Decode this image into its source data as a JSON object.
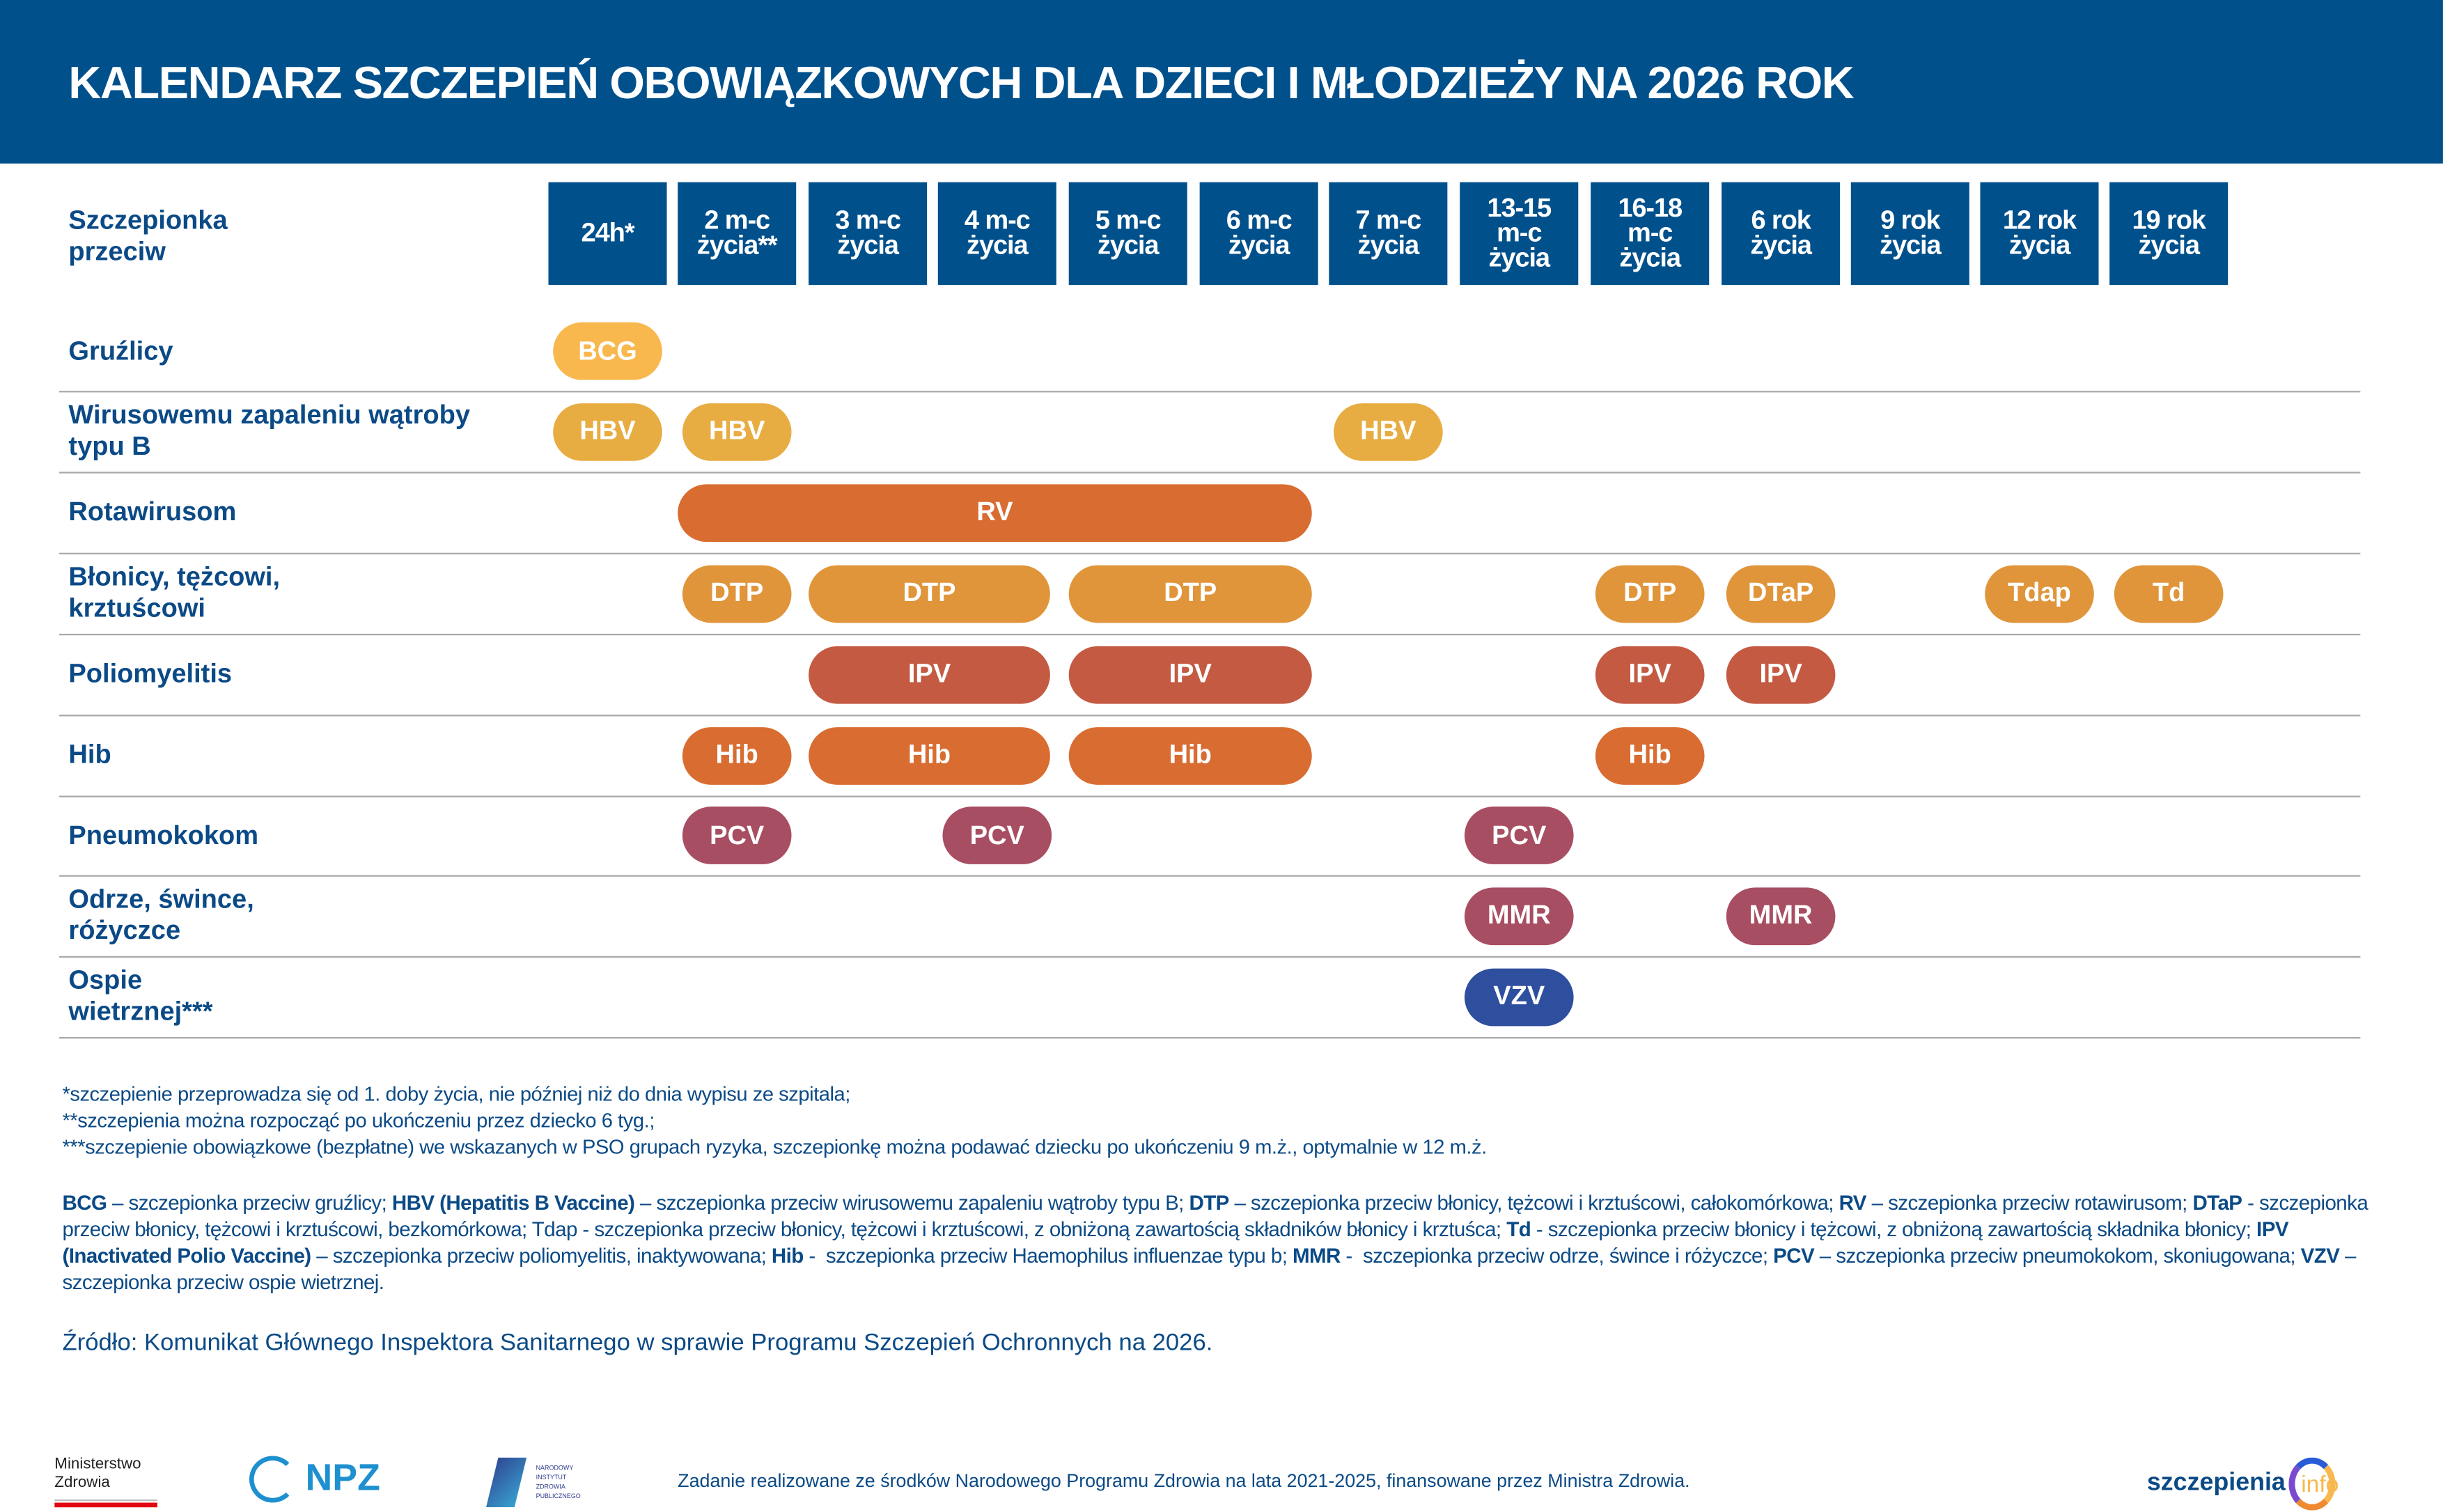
{
  "title": "KALENDARZ SZCZEPIEŃ OBOWIĄZKOWYCH DLA DZIECI I MŁODZIEŻY NA 2026 ROK",
  "corner_label": "Szczepionka\nprzeciw",
  "columns": [
    "24h*",
    "2 m-c\nżycia**",
    "3 m-c\nżycia",
    "4 m-c\nżycia",
    "5 m-c\nżycia",
    "6 m-c\nżycia",
    "7 m-c\nżycia",
    "13-15\nm-c\nżycia",
    "16-18\nm-c\nżycia",
    "6 rok\nżycia",
    "9 rok\nżycia",
    "12 rok\nżycia",
    "19 rok\nżycia"
  ],
  "colors": {
    "header": "#00508C",
    "bcg": "#F8B84E",
    "hbv": "#E8AD42",
    "orange": "#D96C31",
    "dtp": "#E0953A",
    "ipv": "#C45A42",
    "plum": "#A84E62",
    "vzv": "#2E4E9E"
  },
  "rows": [
    {
      "label": "Gruźlicy",
      "pills": [
        {
          "text": "BCG",
          "from": 0,
          "to": 0,
          "color": "#F8B84E"
        }
      ]
    },
    {
      "label": "Wirusowemu zapaleniu wątroby\ntypu B",
      "pills": [
        {
          "text": "HBV",
          "from": 0,
          "to": 0,
          "color": "#E8AD42"
        },
        {
          "text": "HBV",
          "from": 1,
          "to": 1,
          "color": "#E8AD42"
        },
        {
          "text": "HBV",
          "from": 6,
          "to": 6,
          "color": "#E8AD42"
        }
      ]
    },
    {
      "label": "Rotawirusom",
      "pills": [
        {
          "text": "RV",
          "from": 1,
          "to": 5,
          "color": "#D96C31"
        }
      ]
    },
    {
      "label": "Błonicy, tężcowi,\nkrztuścowi",
      "pills": [
        {
          "text": "DTP",
          "from": 1,
          "to": 1,
          "color": "#E0953A"
        },
        {
          "text": "DTP",
          "from": 2,
          "to": 3,
          "color": "#E0953A"
        },
        {
          "text": "DTP",
          "from": 4,
          "to": 5,
          "color": "#E0953A"
        },
        {
          "text": "DTP",
          "from": 8,
          "to": 8,
          "color": "#E0953A"
        },
        {
          "text": "DTaP",
          "from": 9,
          "to": 9,
          "color": "#E0953A"
        },
        {
          "text": "Tdap",
          "from": 11,
          "to": 11,
          "color": "#E0953A"
        },
        {
          "text": "Td",
          "from": 12,
          "to": 12,
          "color": "#E0953A"
        }
      ]
    },
    {
      "label": "Poliomyelitis",
      "pills": [
        {
          "text": "IPV",
          "from": 2,
          "to": 3,
          "color": "#C45A42"
        },
        {
          "text": "IPV",
          "from": 4,
          "to": 5,
          "color": "#C45A42"
        },
        {
          "text": "IPV",
          "from": 8,
          "to": 8,
          "color": "#C45A42"
        },
        {
          "text": "IPV",
          "from": 9,
          "to": 9,
          "color": "#C45A42"
        }
      ]
    },
    {
      "label": "Hib",
      "pills": [
        {
          "text": "Hib",
          "from": 1,
          "to": 1,
          "color": "#D96C31"
        },
        {
          "text": "Hib",
          "from": 2,
          "to": 3,
          "color": "#D96C31"
        },
        {
          "text": "Hib",
          "from": 4,
          "to": 5,
          "color": "#D96C31"
        },
        {
          "text": "Hib",
          "from": 8,
          "to": 8,
          "color": "#D96C31"
        }
      ]
    },
    {
      "label": "Pneumokokom",
      "pills": [
        {
          "text": "PCV",
          "from": 1,
          "to": 1,
          "color": "#A84E62"
        },
        {
          "text": "PCV",
          "from": 3,
          "to": 3,
          "color": "#A84E62"
        },
        {
          "text": "PCV",
          "from": 7,
          "to": 7,
          "color": "#A84E62"
        }
      ]
    },
    {
      "label": "Odrze, śwince,\nróżyczce",
      "pills": [
        {
          "text": "MMR",
          "from": 7,
          "to": 7,
          "color": "#A84E62"
        },
        {
          "text": "MMR",
          "from": 9,
          "to": 9,
          "color": "#A84E62"
        }
      ]
    },
    {
      "label": "Ospie\nwietrznej***",
      "pills": [
        {
          "text": "VZV",
          "from": 7,
          "to": 7,
          "color": "#2E4E9E"
        }
      ]
    }
  ],
  "footnotes": [
    "*szczepienie przeprowadza się od 1. doby życia, nie później niż do dnia wypisu ze szpitala;",
    "**szczepienia można rozpocząć po ukończeniu przez dziecko 6 tyg.;",
    "***szczepienie obowiązkowe (bezpłatne) we wskazanych w PSO grupach ryzyka, szczepionkę można podawać dziecku po ukończeniu 9 m.ż., optymalnie w 12 m.ż."
  ],
  "legend": [
    {
      "term": "BCG",
      "desc": " – szczepionka przeciw gruźlicy; "
    },
    {
      "term": "HBV (Hepatitis B Vaccine)",
      "desc": " – szczepionka przeciw wirusowemu zapaleniu wątroby typu B; "
    },
    {
      "term": "DTP",
      "desc": " – szczepionka przeciw błonicy, tężcowi i krztuścowi, całokomórkowa; "
    },
    {
      "term": "RV",
      "desc": " – szczepionka przeciw rotawirusom; "
    },
    {
      "term": "DTaP",
      "desc": " - szczepionka przeciw błonicy, tężcowi i krztuścowi, bezkomórkowa; Tdap - szczepionka przeciw błonicy, tężcowi i krztuścowi, z obniżoną zawartością składników błonicy i krztuśca; "
    },
    {
      "term": "Td",
      "desc": " - szczepionka przeciw błonicy i tężcowi, z obniżoną zawartością składnika błonicy; "
    },
    {
      "term": "IPV (Inactivated Polio Vaccine)",
      "desc": " – szczepionka przeciw poliomyelitis, inaktywowana; "
    },
    {
      "term": "Hib",
      "desc": " -  szczepionka przeciw Haemophilus influenzae typu b; "
    },
    {
      "term": "MMR",
      "desc": " -  szczepionka przeciw odrze, śwince i różyczce; "
    },
    {
      "term": "PCV",
      "desc": " – szczepionka przeciw pneumokokom, skoniugowana; "
    },
    {
      "term": "VZV",
      "desc": " – szczepionka przeciw ospie wietrznej."
    }
  ],
  "source": "Źródło: Komunikat Głównego Inspektora Sanitarnego w sprawie Programu Szczepień Ochronnych na 2026.",
  "footer": {
    "ministry_logo": "Ministerstwo\nZdrowia",
    "npz_logo": "NPZ",
    "nizp_logo": "NARODOWY INSTYTUT ZDROWIA PUBLICZNEGO",
    "funding_note": "Zadanie realizowane ze środków Narodowego Programu Zdrowia na lata 2021-2025, finansowane przez Ministra Zdrowia.",
    "brand_logo": "szczepienia",
    "brand_logo_suffix": "info"
  }
}
